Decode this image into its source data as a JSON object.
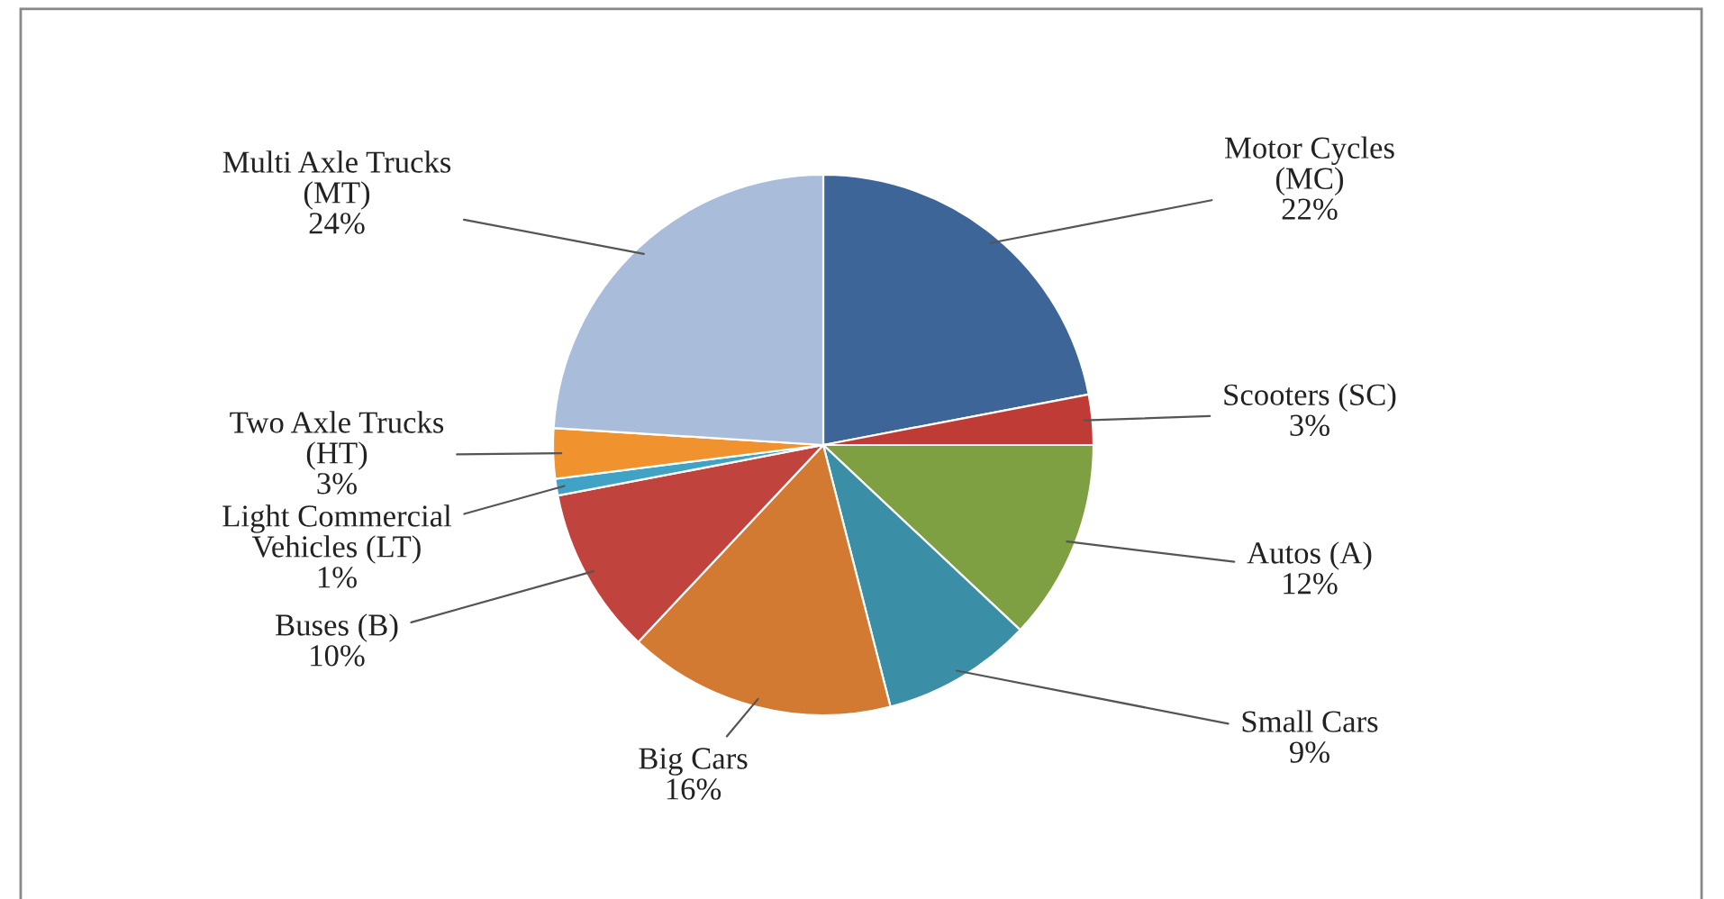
{
  "chart_data": {
    "type": "pie",
    "categories": [
      "Motor Cycles\n(MC)",
      "Scooters (SC)",
      "Autos (A)",
      "Small Cars",
      "Big Cars",
      "Buses (B)",
      "Light Commercial\nVehicles (LT)",
      "Two Axle Trucks\n(HT)",
      "Multi Axle Trucks\n(MT)"
    ],
    "values": [
      22,
      3,
      12,
      9,
      16,
      10,
      1,
      3,
      24
    ],
    "colors": [
      "#3d6597",
      "#be3b36",
      "#7f9f43",
      "#3a8ea6",
      "#d27a32",
      "#c0433d",
      "#40a2c4",
      "#f0922d",
      "#a9bcd9"
    ],
    "value_labels": [
      "22%",
      "3%",
      "12%",
      "9%",
      "16%",
      "10%",
      "1%",
      "3%",
      "24%"
    ],
    "legend": false
  }
}
